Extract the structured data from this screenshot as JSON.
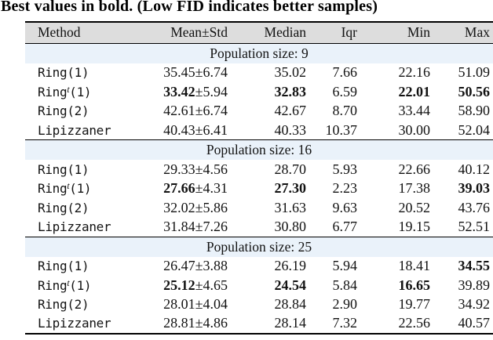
{
  "caption": "Best values in bold. (Low FID indicates better samples)",
  "table": {
    "headers": [
      "Method",
      "Mean±Std",
      "Median",
      "Iqr",
      "Min",
      "Max"
    ],
    "sections": [
      {
        "title": "Population size: 9",
        "rows": [
          {
            "name_pre": "Ring",
            "name_sup": "",
            "name_post": "(1)",
            "mean": "35.45",
            "std": "±6.74",
            "median": "35.02",
            "iqr": "7.66",
            "min": "22.16",
            "max": "51.09"
          },
          {
            "name_pre": "Ring",
            "name_sup": "t",
            "name_post": "(1)",
            "mean": "33.42",
            "std": "±5.94",
            "median": "32.83",
            "iqr": "6.59",
            "min": "22.01",
            "max": "50.56",
            "bold": {
              "mean": true,
              "median": true,
              "min": true,
              "max": true
            }
          },
          {
            "name_pre": "Ring",
            "name_sup": "",
            "name_post": "(2)",
            "mean": "42.61",
            "std": "±6.74",
            "median": "42.67",
            "iqr": "8.70",
            "min": "33.44",
            "max": "58.90"
          },
          {
            "name_pre": "Lipizzaner",
            "name_sup": "",
            "name_post": "",
            "mean": "40.43",
            "std": "±6.41",
            "median": "40.33",
            "iqr": "10.37",
            "min": "30.00",
            "max": "52.04"
          }
        ]
      },
      {
        "title": "Population size: 16",
        "rows": [
          {
            "name_pre": "Ring",
            "name_sup": "",
            "name_post": "(1)",
            "mean": "29.33",
            "std": "±4.56",
            "median": "28.70",
            "iqr": "5.93",
            "min": "22.66",
            "max": "40.12"
          },
          {
            "name_pre": "Ring",
            "name_sup": "t",
            "name_post": "(1)",
            "mean": "27.66",
            "std": "±4.31",
            "median": "27.30",
            "iqr": "2.23",
            "min": "17.38",
            "max": "39.03",
            "bold": {
              "mean": true,
              "median": true,
              "max": true
            }
          },
          {
            "name_pre": "Ring",
            "name_sup": "",
            "name_post": "(2)",
            "mean": "32.02",
            "std": "±5.86",
            "median": "31.63",
            "iqr": "9.63",
            "min": "20.52",
            "max": "43.76"
          },
          {
            "name_pre": "Lipizzaner",
            "name_sup": "",
            "name_post": "",
            "mean": "31.84",
            "std": "±7.26",
            "median": "30.80",
            "iqr": "6.77",
            "min": "19.15",
            "max": "52.51"
          }
        ]
      },
      {
        "title": "Population size: 25",
        "rows": [
          {
            "name_pre": "Ring",
            "name_sup": "",
            "name_post": "(1)",
            "mean": "26.47",
            "std": "±3.88",
            "median": "26.19",
            "iqr": "5.94",
            "min": "18.41",
            "max": "34.55",
            "bold": {
              "max": true
            }
          },
          {
            "name_pre": "Ring",
            "name_sup": "t",
            "name_post": "(1)",
            "mean": "25.12",
            "std": "±4.65",
            "median": "24.54",
            "iqr": "5.84",
            "min": "16.65",
            "max": "39.89",
            "bold": {
              "mean": true,
              "median": true,
              "min": true
            }
          },
          {
            "name_pre": "Ring",
            "name_sup": "",
            "name_post": "(2)",
            "mean": "28.01",
            "std": "±4.04",
            "median": "28.84",
            "iqr": "2.90",
            "min": "19.77",
            "max": "34.92"
          },
          {
            "name_pre": "Lipizzaner",
            "name_sup": "",
            "name_post": "",
            "mean": "28.81",
            "std": "±4.86",
            "median": "28.14",
            "iqr": "7.32",
            "min": "22.56",
            "max": "40.57"
          }
        ]
      }
    ]
  },
  "colors": {
    "header_bg": "#dddddd",
    "section_bg": "#eaf2fa",
    "rule": "#000000",
    "text": "#121212"
  }
}
